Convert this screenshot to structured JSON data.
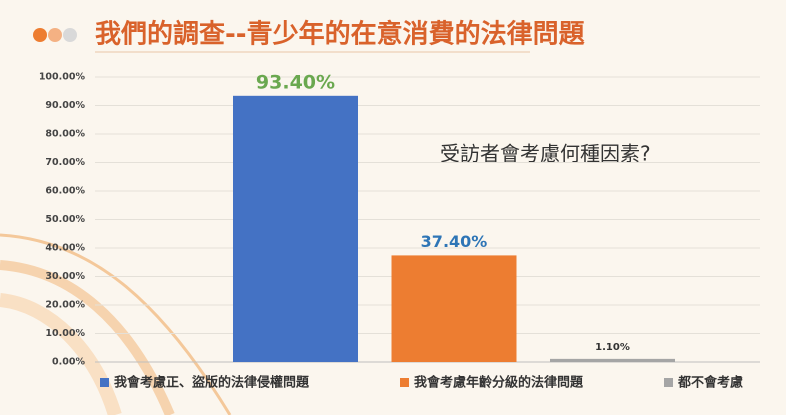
{
  "chart_data": {
    "type": "bar",
    "title": "我們的調查--青少年的在意消費的法律問題",
    "annotation": "受訪者會考慮何種因素?",
    "categories": [
      null
    ],
    "series": [
      {
        "name": "我會考慮正、盜版的法律侵權問題",
        "color": "#4472c4",
        "label_color": "#6aa84f",
        "values": [
          93.4
        ],
        "value_labels": [
          "93.40%"
        ]
      },
      {
        "name": "我會考慮年齡分級的法律問題",
        "color": "#ed7d31",
        "label_color": "#2e75b6",
        "values": [
          37.4
        ],
        "value_labels": [
          "37.40%"
        ]
      },
      {
        "name": "都不會考慮",
        "color": "#a5a5a5",
        "label_color": "#333333",
        "values": [
          1.1
        ],
        "value_labels": [
          "1.10%"
        ]
      }
    ],
    "ylim": [
      0,
      100
    ],
    "yticks": [
      {
        "value": 0,
        "label": "0.00%"
      },
      {
        "value": 10,
        "label": "10.00%"
      },
      {
        "value": 20,
        "label": "20.00%"
      },
      {
        "value": 30,
        "label": "30.00%"
      },
      {
        "value": 40,
        "label": "40.00%"
      },
      {
        "value": 50,
        "label": "50.00%"
      },
      {
        "value": 60,
        "label": "60.00%"
      },
      {
        "value": 70,
        "label": "70.00%"
      },
      {
        "value": 80,
        "label": "80.00%"
      },
      {
        "value": 90,
        "label": "90.00%"
      },
      {
        "value": 100,
        "label": "100.00%"
      }
    ],
    "grid": true,
    "legend": "bottom"
  }
}
